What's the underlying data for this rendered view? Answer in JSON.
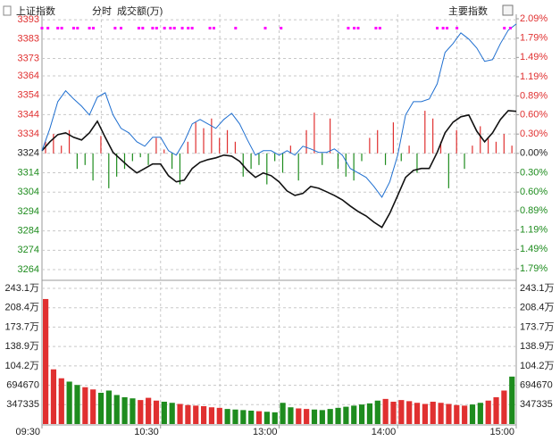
{
  "header": {
    "title": "上证指数",
    "mode": "分时",
    "volume_label": "成交额(万)",
    "menu": "主要指数"
  },
  "chart_data": [
    {
      "type": "line",
      "x": [
        0,
        4,
        8,
        12,
        16,
        20,
        24,
        28,
        32,
        36,
        40,
        44,
        48,
        52,
        56,
        60,
        64,
        68,
        72,
        76,
        80,
        84,
        88,
        92,
        96,
        100,
        104,
        108,
        112,
        116,
        120,
        124,
        128,
        132,
        136,
        140,
        144,
        148,
        152,
        156,
        160,
        164,
        168,
        172,
        176,
        180,
        184,
        188,
        192,
        196,
        200,
        204,
        208,
        212,
        216,
        220,
        224,
        228,
        232,
        236,
        240
      ],
      "xlim": [
        0,
        240
      ],
      "xticks": [
        {
          "value": 0,
          "label": "09:30"
        },
        {
          "value": 60,
          "label": "10:30"
        },
        {
          "value": 120,
          "label": "13:00"
        },
        {
          "value": 180,
          "label": "14:00"
        },
        {
          "value": 240,
          "label": "15:00"
        }
      ],
      "xgrid": [
        30,
        60,
        90,
        120,
        150,
        180,
        210
      ],
      "ylim": [
        3259.4,
        3395.8
      ],
      "yticks": [
        3393,
        3383,
        3373,
        3364,
        3354,
        3344,
        3334,
        3324,
        3314,
        3304,
        3294,
        3284,
        3274,
        3264
      ],
      "y2lim": [
        -1.943,
        2.16
      ],
      "y2ticks": [
        {
          "value": 2.09,
          "label": "2.09%"
        },
        {
          "value": 1.79,
          "label": "1.79%"
        },
        {
          "value": 1.49,
          "label": "1.49%"
        },
        {
          "value": 1.19,
          "label": "1.19%"
        },
        {
          "value": 0.89,
          "label": "0.89%"
        },
        {
          "value": 0.6,
          "label": "0.60%"
        },
        {
          "value": 0.3,
          "label": "0.30%"
        },
        {
          "value": 0,
          "label": "0.00%"
        },
        {
          "value": -0.3,
          "label": "0.30%"
        },
        {
          "value": -0.6,
          "label": "0.60%"
        },
        {
          "value": -0.89,
          "label": "0.89%"
        },
        {
          "value": -1.19,
          "label": "1.19%"
        },
        {
          "value": -1.49,
          "label": "1.49%"
        },
        {
          "value": -1.79,
          "label": "1.79%"
        }
      ],
      "grid": true,
      "up_color": "#e03030",
      "down_color": "#1e8c1e",
      "flat_color": "#222222",
      "series": [
        {
          "color": "#111111",
          "values": [
            3325.4,
            3330.0,
            3333.7,
            3334.6,
            3332.3,
            3330.9,
            3334.6,
            3340.6,
            3332.3,
            3324.5,
            3320.8,
            3317.1,
            3313.9,
            3316.2,
            3318.5,
            3318.5,
            3312.5,
            3309.3,
            3310.2,
            3316.2,
            3319.4,
            3320.8,
            3321.7,
            3323.1,
            3322.6,
            3319.9,
            3315.2,
            3311.6,
            3313.9,
            3312.5,
            3309.3,
            3304.6,
            3302.3,
            3303.3,
            3306.9,
            3306.0,
            3304.2,
            3302.3,
            3300.0,
            3296.8,
            3294.0,
            3291.7,
            3288.5,
            3285.8,
            3293.1,
            3302.3,
            3311.6,
            3315.2,
            3316.2,
            3316.2,
            3324.5,
            3334.6,
            3340.1,
            3342.9,
            3343.8,
            3335.5,
            3330.0,
            3334.6,
            3341.5,
            3346.1,
            3345.7
          ]
        },
        {
          "color": "#1f6fd0",
          "values": [
            3325.4,
            3336.9,
            3350.7,
            3356.3,
            3352.1,
            3348.4,
            3343.8,
            3353.0,
            3355.3,
            3343.8,
            3336.9,
            3334.6,
            3330.0,
            3327.7,
            3332.3,
            3332.3,
            3325.4,
            3323.1,
            3330.0,
            3339.2,
            3341.5,
            3339.2,
            3336.9,
            3341.5,
            3344.7,
            3339.2,
            3330.9,
            3323.1,
            3325.4,
            3325.4,
            3323.1,
            3325.4,
            3323.1,
            3327.7,
            3326.3,
            3324.5,
            3324.5,
            3326.3,
            3323.1,
            3316.2,
            3313.9,
            3311.6,
            3306.9,
            3301.4,
            3309.3,
            3323.1,
            3343.8,
            3350.7,
            3350.7,
            3352.1,
            3359.9,
            3376.1,
            3380.7,
            3386.2,
            3383.0,
            3378.4,
            3371.5,
            3372.4,
            3380.7,
            3387.6,
            3390.8
          ]
        }
      ],
      "bars": {
        "values": [
          3330,
          3334,
          3328,
          3336,
          3316,
          3318,
          3310,
          3333,
          3306,
          3312,
          3316,
          3320,
          3322,
          3318,
          3332,
          3326,
          3316,
          3308,
          3330,
          3340,
          3337,
          3342,
          3332,
          3336,
          3330,
          3312,
          3316,
          3318,
          3308,
          3320,
          3314,
          3328,
          3310,
          3336,
          3345,
          3318,
          3342,
          3316,
          3312,
          3310,
          3320,
          3332,
          3336,
          3318,
          3340,
          3320,
          3328,
          3314,
          3346,
          3342,
          3330,
          3306,
          3336,
          3316,
          3328,
          3338,
          3332,
          3330,
          3334,
          3328
        ]
      },
      "signals": {
        "color": "#ff00ff",
        "x": [
          0,
          3,
          8,
          10,
          16,
          18,
          24,
          26,
          37,
          40,
          49,
          51,
          56,
          58,
          62,
          65,
          67,
          71,
          74,
          76,
          85,
          87,
          98,
          113,
          121,
          155,
          158,
          160,
          169,
          171,
          200,
          203,
          205,
          210,
          234,
          237
        ]
      }
    },
    {
      "type": "bar",
      "x": [
        0,
        4,
        8,
        12,
        16,
        20,
        24,
        28,
        32,
        36,
        40,
        44,
        48,
        52,
        56,
        60,
        64,
        68,
        72,
        76,
        80,
        84,
        88,
        92,
        96,
        100,
        104,
        108,
        112,
        116,
        120,
        124,
        128,
        132,
        136,
        140,
        144,
        148,
        152,
        156,
        160,
        164,
        168,
        172,
        176,
        180,
        184,
        188,
        192,
        196,
        200,
        204,
        208,
        212,
        216,
        220,
        224,
        228,
        232,
        236
      ],
      "ylim": [
        0,
        2543000
      ],
      "yticks": [
        {
          "value": 2431000,
          "label": "243.1万"
        },
        {
          "value": 2084000,
          "label": "208.4万"
        },
        {
          "value": 1737000,
          "label": "173.7万"
        },
        {
          "value": 1389000,
          "label": "138.9万"
        },
        {
          "value": 1042000,
          "label": "104.2万"
        },
        694670,
        347335
      ],
      "grid": true,
      "values": [
        2240000,
        980000,
        820000,
        760000,
        700000,
        660000,
        620000,
        560000,
        600000,
        520000,
        480000,
        460000,
        430000,
        470000,
        420000,
        400000,
        380000,
        360000,
        340000,
        330000,
        320000,
        300000,
        290000,
        270000,
        260000,
        250000,
        240000,
        230000,
        220000,
        210000,
        380000,
        300000,
        280000,
        270000,
        260000,
        250000,
        270000,
        290000,
        310000,
        330000,
        350000,
        370000,
        420000,
        450000,
        400000,
        430000,
        410000,
        380000,
        360000,
        400000,
        380000,
        360000,
        340000,
        330000,
        350000,
        380000,
        420000,
        480000,
        600000,
        850000
      ]
    }
  ]
}
